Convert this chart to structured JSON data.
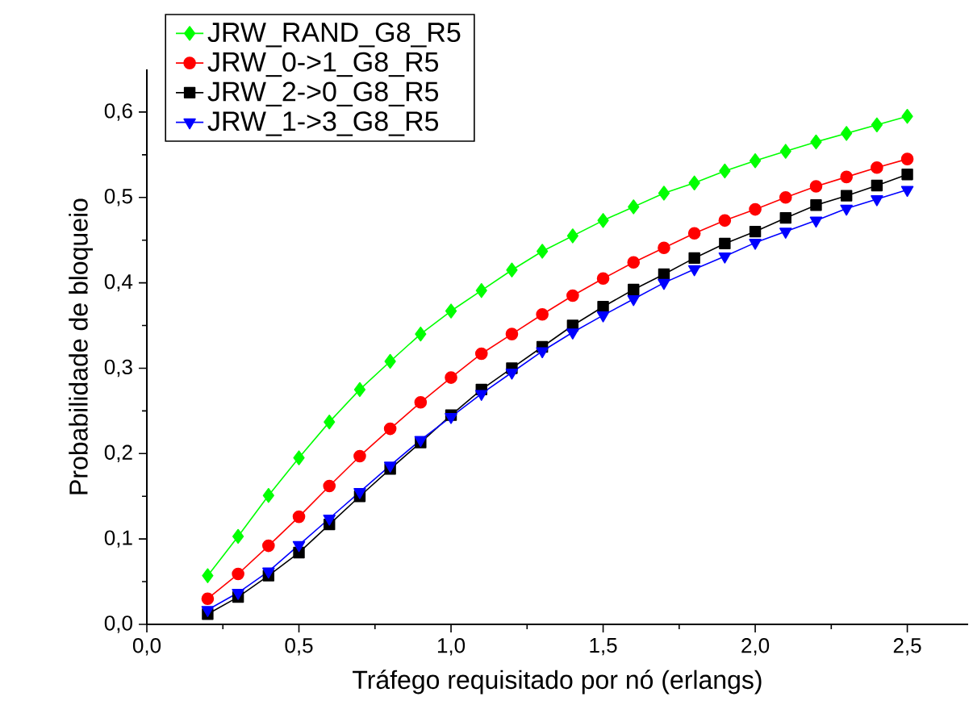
{
  "chart_data": {
    "type": "line",
    "xlabel": "Tráfego requisitado por nó (erlangs)",
    "ylabel": "Probabilidade de bloqueio",
    "x": [
      0.2,
      0.3,
      0.4,
      0.5,
      0.6,
      0.7,
      0.8,
      0.9,
      1.0,
      1.1,
      1.2,
      1.3,
      1.4,
      1.5,
      1.6,
      1.7,
      1.8,
      1.9,
      2.0,
      2.1,
      2.2,
      2.3,
      2.4,
      2.5
    ],
    "series": [
      {
        "name": "JRW_RAND_G8_R5",
        "color": "#00ff00",
        "marker": "diamond",
        "values": [
          0.057,
          0.103,
          0.151,
          0.195,
          0.237,
          0.275,
          0.308,
          0.34,
          0.367,
          0.391,
          0.415,
          0.437,
          0.455,
          0.473,
          0.489,
          0.505,
          0.517,
          0.531,
          0.543,
          0.554,
          0.565,
          0.575,
          0.585,
          0.595
        ]
      },
      {
        "name": "JRW_0->1_G8_R5",
        "color": "#ff0000",
        "marker": "circle",
        "values": [
          0.03,
          0.059,
          0.092,
          0.126,
          0.162,
          0.197,
          0.229,
          0.26,
          0.289,
          0.317,
          0.34,
          0.363,
          0.385,
          0.405,
          0.424,
          0.441,
          0.458,
          0.473,
          0.486,
          0.5,
          0.513,
          0.524,
          0.535,
          0.545
        ]
      },
      {
        "name": "JRW_2->0_G8_R5",
        "color": "#000000",
        "marker": "square",
        "values": [
          0.012,
          0.032,
          0.057,
          0.084,
          0.117,
          0.15,
          0.182,
          0.213,
          0.245,
          0.275,
          0.3,
          0.325,
          0.35,
          0.372,
          0.392,
          0.41,
          0.429,
          0.446,
          0.46,
          0.476,
          0.491,
          0.502,
          0.514,
          0.527
        ]
      },
      {
        "name": "JRW_1->3_G8_R5",
        "color": "#0000ff",
        "marker": "triangle",
        "values": [
          0.017,
          0.037,
          0.062,
          0.093,
          0.124,
          0.155,
          0.186,
          0.216,
          0.243,
          0.27,
          0.295,
          0.32,
          0.342,
          0.362,
          0.381,
          0.4,
          0.416,
          0.431,
          0.447,
          0.46,
          0.473,
          0.487,
          0.498,
          0.509
        ]
      }
    ],
    "xlim": [
      0,
      2.7
    ],
    "ylim": [
      0,
      0.65
    ],
    "xticks": [
      {
        "value": 0,
        "label": "0,0"
      },
      {
        "value": 0.5,
        "label": "0,5"
      },
      {
        "value": 1.0,
        "label": "1,0"
      },
      {
        "value": 1.5,
        "label": "1,5"
      },
      {
        "value": 2.0,
        "label": "2,0"
      },
      {
        "value": 2.5,
        "label": "2,5"
      }
    ],
    "yticks": [
      {
        "value": 0,
        "label": "0,0"
      },
      {
        "value": 0.1,
        "label": "0,1"
      },
      {
        "value": 0.2,
        "label": "0,2"
      },
      {
        "value": 0.3,
        "label": "0,3"
      },
      {
        "value": 0.4,
        "label": "0,4"
      },
      {
        "value": 0.5,
        "label": "0,5"
      },
      {
        "value": 0.6,
        "label": "0,6"
      }
    ],
    "grid": false,
    "legend": "top left",
    "line_style": "solid"
  }
}
